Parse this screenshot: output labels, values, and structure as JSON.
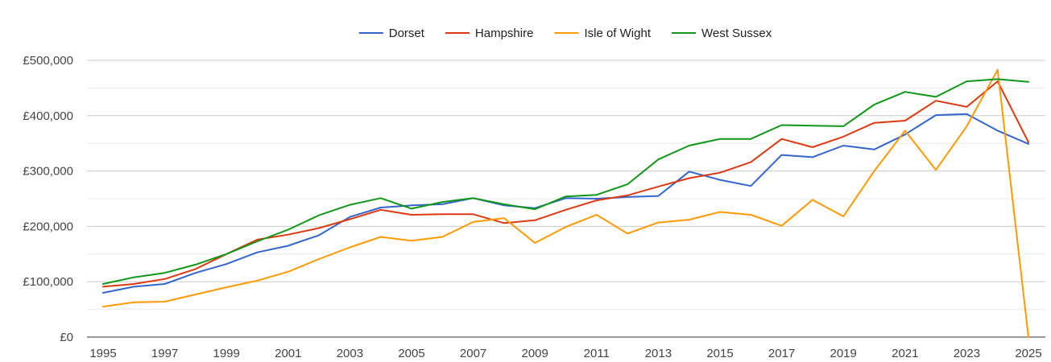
{
  "chart_data": {
    "type": "line",
    "title": "",
    "xlabel": "",
    "ylabel": "",
    "legend_position": "top-center",
    "grid": true,
    "xlim": [
      1995,
      2025
    ],
    "ylim": [
      0,
      500000
    ],
    "x_ticks": [
      "1995",
      "1997",
      "1999",
      "2001",
      "2003",
      "2005",
      "2007",
      "2009",
      "2011",
      "2013",
      "2015",
      "2017",
      "2019",
      "2021",
      "2023",
      "2025"
    ],
    "y_ticks": [
      {
        "value": 0,
        "label": "£0"
      },
      {
        "value": 100000,
        "label": "£100,000"
      },
      {
        "value": 200000,
        "label": "£200,000"
      },
      {
        "value": 300000,
        "label": "£300,000"
      },
      {
        "value": 400000,
        "label": "£400,000"
      },
      {
        "value": 500000,
        "label": "£500,000"
      }
    ],
    "x": [
      1995,
      1996,
      1997,
      1998,
      1999,
      2000,
      2001,
      2002,
      2003,
      2004,
      2005,
      2006,
      2007,
      2008,
      2009,
      2010,
      2011,
      2012,
      2013,
      2014,
      2015,
      2016,
      2017,
      2018,
      2019,
      2020,
      2021,
      2022,
      2023,
      2024,
      2025
    ],
    "series": [
      {
        "name": "Dorset",
        "color": "#3366cc",
        "values": [
          80000,
          91000,
          96000,
          116000,
          132000,
          153000,
          165000,
          184000,
          217000,
          234000,
          238000,
          240000,
          251000,
          238000,
          233000,
          251000,
          250000,
          253000,
          255000,
          299000,
          284000,
          273000,
          329000,
          325000,
          346000,
          339000,
          366000,
          401000,
          403000,
          373000,
          349000
        ]
      },
      {
        "name": "Hampshire",
        "color": "#dc3912",
        "values": [
          91000,
          96000,
          105000,
          123000,
          150000,
          176000,
          185000,
          197000,
          213000,
          230000,
          221000,
          222000,
          222000,
          206000,
          211000,
          230000,
          247000,
          256000,
          272000,
          287000,
          297000,
          316000,
          358000,
          343000,
          362000,
          387000,
          391000,
          427000,
          416000,
          462000,
          352000
        ]
      },
      {
        "name": "Isle of Wight",
        "color": "#ff9900",
        "values": [
          55000,
          63000,
          64000,
          77000,
          90000,
          102000,
          118000,
          141000,
          162000,
          181000,
          174000,
          181000,
          208000,
          215000,
          170000,
          199000,
          221000,
          187000,
          207000,
          212000,
          226000,
          221000,
          201000,
          248000,
          218000,
          300000,
          373000,
          302000,
          381000,
          483000,
          0
        ]
      },
      {
        "name": "West Sussex",
        "color": "#109618",
        "values": [
          96000,
          108000,
          116000,
          131000,
          150000,
          173000,
          194000,
          220000,
          239000,
          251000,
          232000,
          244000,
          251000,
          240000,
          231000,
          254000,
          257000,
          276000,
          321000,
          346000,
          358000,
          358000,
          383000,
          382000,
          381000,
          420000,
          443000,
          434000,
          462000,
          466000,
          461000
        ]
      }
    ]
  }
}
